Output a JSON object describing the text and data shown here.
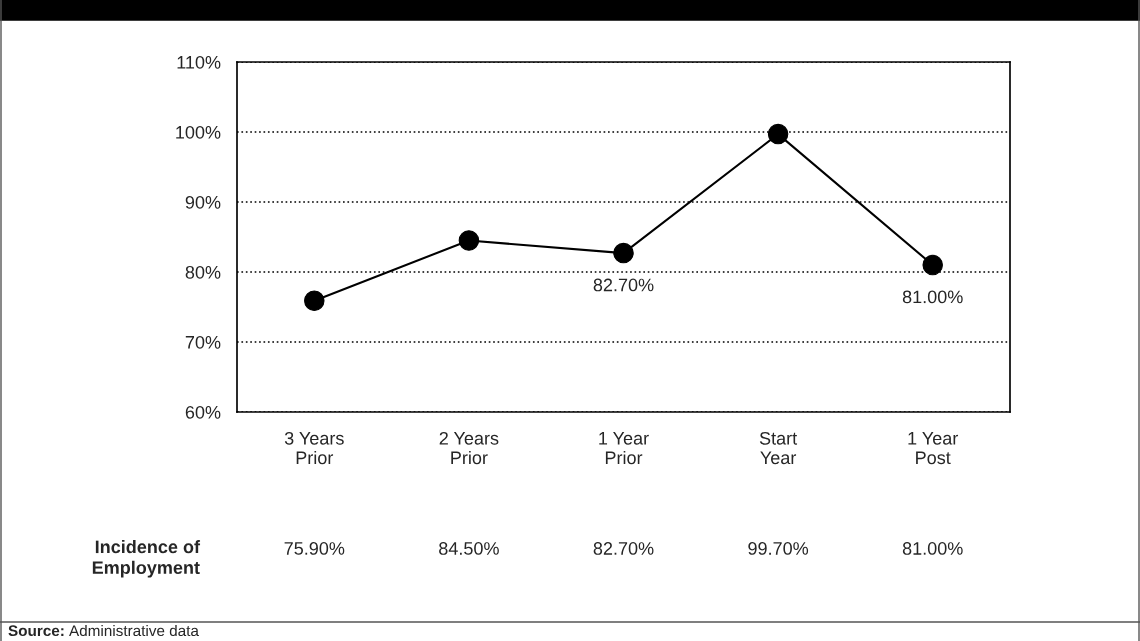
{
  "chart_data": {
    "type": "line",
    "categories": [
      "3 Years\nPrior",
      "2 Years\nPrior",
      "1 Year\nPrior",
      "Start\nYear",
      "1 Year\nPost"
    ],
    "series": [
      {
        "color": "#000000",
        "values": [
          75.9,
          84.5,
          82.7,
          99.7,
          81.0
        ],
        "value_labels": [
          null,
          null,
          "82.70%",
          null,
          "81.00%"
        ]
      }
    ],
    "ylim": [
      60,
      110
    ],
    "yticks": [
      {
        "value": 60,
        "label": "60%"
      },
      {
        "value": 70,
        "label": "70%"
      },
      {
        "value": 80,
        "label": "80%"
      },
      {
        "value": 90,
        "label": "90%"
      },
      {
        "value": 100,
        "label": "100%"
      },
      {
        "value": 110,
        "label": "110%"
      }
    ],
    "grid": "y",
    "marker": "circle",
    "line_style": "solid",
    "legend": false,
    "annotations": [
      "Incidence of Employment",
      "Source: Administrative data",
      "75.90%",
      "84.50%",
      "82.70%",
      "99.70%",
      "81.00%"
    ]
  }
}
